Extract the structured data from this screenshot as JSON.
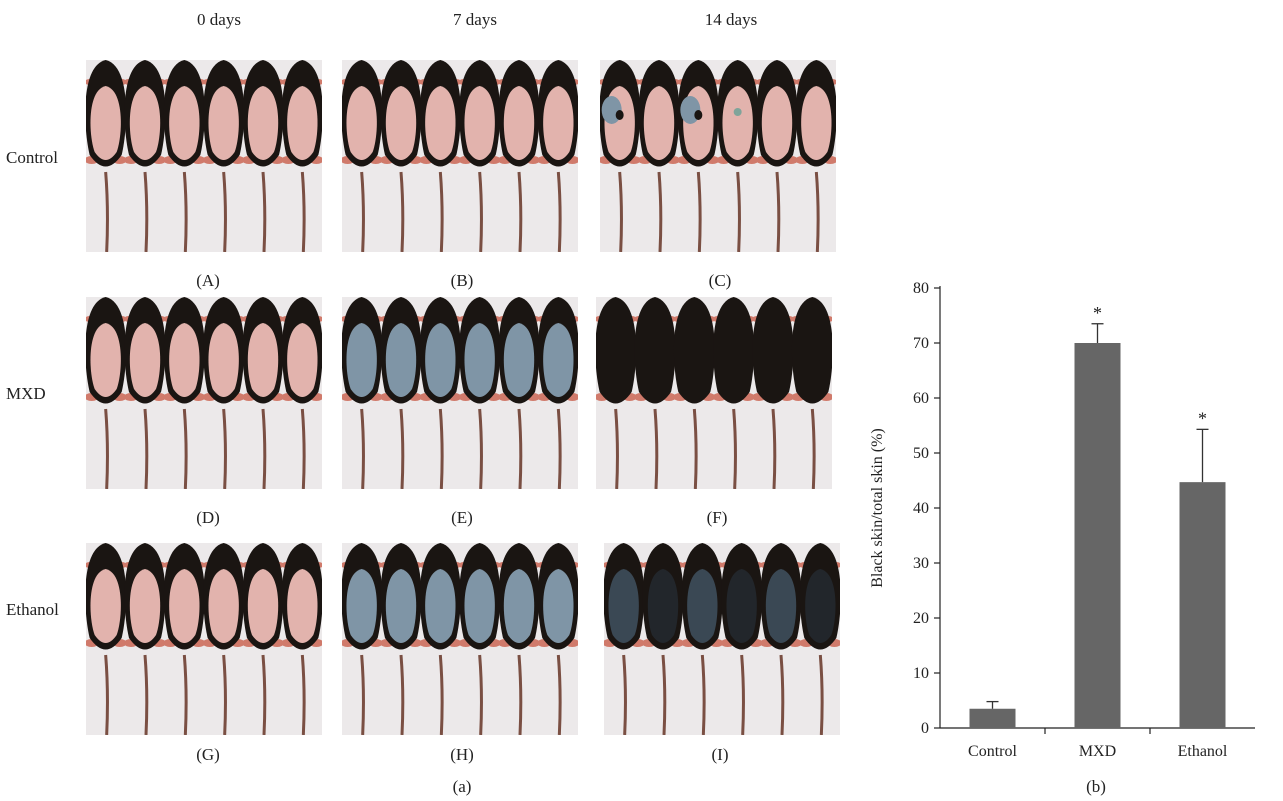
{
  "panel_a": {
    "columns": [
      "0 days",
      "7 days",
      "14 days"
    ],
    "rows": [
      "Control",
      "MXD",
      "Ethanol"
    ],
    "captions": [
      "(A)",
      "(B)",
      "(C)",
      "(D)",
      "(E)",
      "(F)",
      "(G)",
      "(H)",
      "(I)"
    ],
    "label": "(a)",
    "colors": {
      "fur": "#1a1512",
      "pink_skin": "#e2b3ad",
      "blue_grey_skin": "#7f95a6",
      "background": "#ece9ea",
      "tail": "#7a4f43",
      "feet": "#d07a6b"
    }
  },
  "panel_b": {
    "label": "(b)"
  },
  "chart_data": {
    "type": "bar",
    "categories": [
      "Control",
      "MXD",
      "Ethanol"
    ],
    "values": [
      3.5,
      70,
      44.7
    ],
    "error_upper": [
      4.8,
      73.5,
      54.3
    ],
    "significance": [
      "",
      "*",
      "*"
    ],
    "ylabel": "Black skin/total skin (%)",
    "ylim": [
      0,
      80
    ],
    "yticks": [
      0,
      10,
      20,
      30,
      40,
      50,
      60,
      70,
      80
    ],
    "grid": false,
    "bar_color": "#666666"
  }
}
